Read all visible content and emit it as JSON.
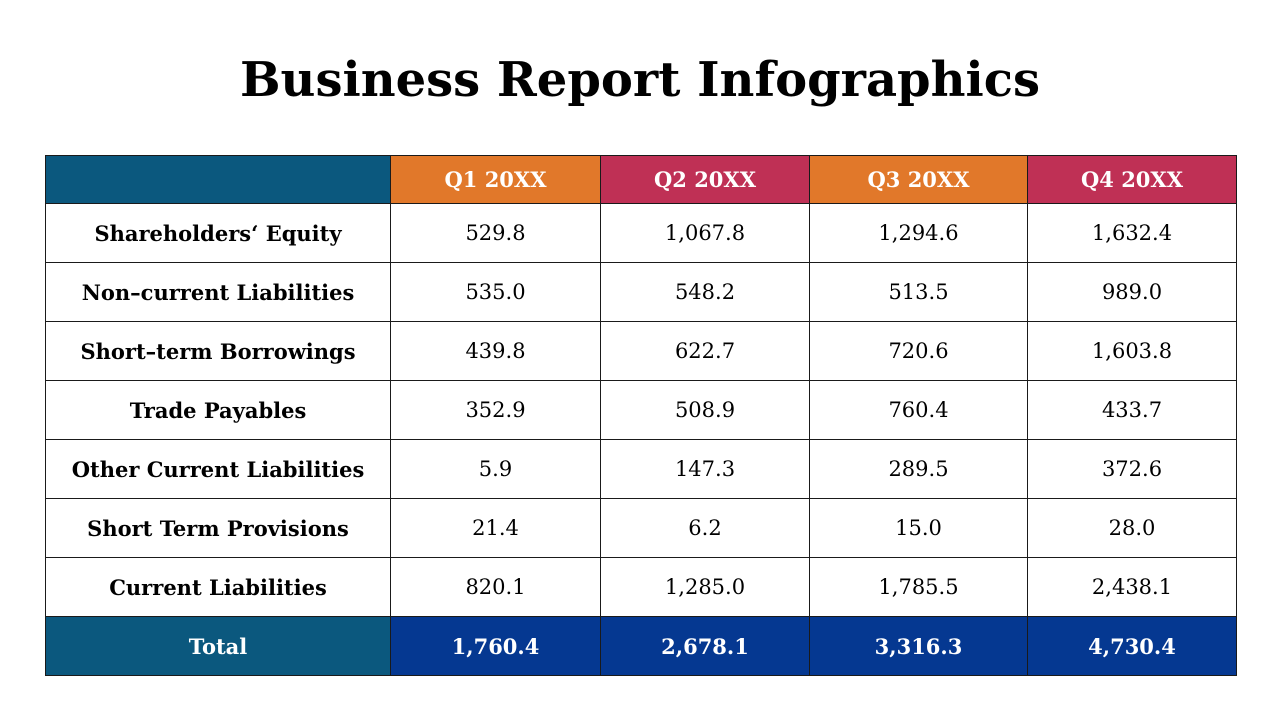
{
  "title": "Business Report Infographics",
  "colors": {
    "corner_teal": "#0b587e",
    "header_orange": "#e1782a",
    "header_crimson": "#bf3055",
    "total_label_teal": "#0b587e",
    "total_value_blue": "#053891",
    "grid_line": "#1a1a1a"
  },
  "table": {
    "corner": "",
    "columns": [
      "Q1 20XX",
      "Q2 20XX",
      "Q3 20XX",
      "Q4 20XX"
    ],
    "rows": [
      {
        "label": "Shareholders‘ Equity",
        "values": [
          "529.8",
          "1,067.8",
          "1,294.6",
          "1,632.4"
        ]
      },
      {
        "label": "Non–current Liabilities",
        "values": [
          "535.0",
          "548.2",
          "513.5",
          "989.0"
        ]
      },
      {
        "label": "Short–term Borrowings",
        "values": [
          "439.8",
          "622.7",
          "720.6",
          "1,603.8"
        ]
      },
      {
        "label": "Trade Payables",
        "values": [
          "352.9",
          "508.9",
          "760.4",
          "433.7"
        ]
      },
      {
        "label": "Other Current Liabilities",
        "values": [
          "5.9",
          "147.3",
          "289.5",
          "372.6"
        ]
      },
      {
        "label": "Short Term Provisions",
        "values": [
          "21.4",
          "6.2",
          "15.0",
          "28.0"
        ]
      },
      {
        "label": "Current Liabilities",
        "values": [
          "820.1",
          "1,285.0",
          "1,785.5",
          "2,438.1"
        ]
      }
    ],
    "total": {
      "label": "Total",
      "values": [
        "1,760.4",
        "2,678.1",
        "3,316.3",
        "4,730.4"
      ]
    }
  }
}
